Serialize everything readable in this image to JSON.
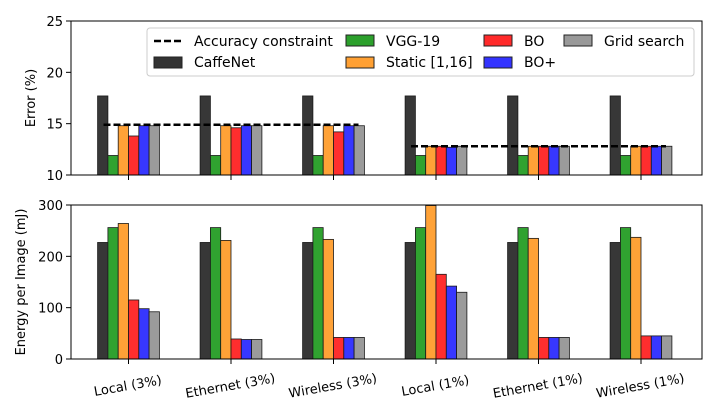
{
  "chart_data": [
    {
      "type": "bar",
      "panel": "top",
      "ylabel": "Error (%)",
      "ylim": [
        10,
        25
      ],
      "yticks": [
        10,
        15,
        20,
        25
      ],
      "categories": [
        "Local (3%)",
        "Ethernet (3%)",
        "Wireless (3%)",
        "Local (1%)",
        "Ethernet (1%)",
        "Wireless (1%)"
      ],
      "series": [
        {
          "name": "CaffeNet",
          "color": "#333333",
          "values": [
            17.7,
            17.7,
            17.7,
            17.7,
            17.7,
            17.7
          ]
        },
        {
          "name": "VGG-19",
          "color": "#2ca02c",
          "values": [
            11.9,
            11.9,
            11.9,
            11.9,
            11.9,
            11.9
          ]
        },
        {
          "name": "Static [1,16]",
          "color": "#ffa033",
          "values": [
            14.8,
            14.8,
            14.8,
            12.8,
            12.8,
            12.8
          ]
        },
        {
          "name": "BO",
          "color": "#ff2a2a",
          "values": [
            13.8,
            14.6,
            14.2,
            12.8,
            12.8,
            12.8
          ]
        },
        {
          "name": "BO+",
          "color": "#3333ff",
          "values": [
            14.8,
            14.8,
            14.8,
            12.7,
            12.8,
            12.8
          ]
        },
        {
          "name": "Grid search",
          "color": "#999999",
          "values": [
            14.8,
            14.8,
            14.8,
            12.8,
            12.8,
            12.8
          ]
        }
      ],
      "constraints": [
        {
          "name": "Accuracy constraint",
          "value": 14.9,
          "from_category": 0,
          "to_category": 2
        },
        {
          "name": "Accuracy constraint",
          "value": 12.8,
          "from_category": 3,
          "to_category": 5
        }
      ],
      "legend_position": "top-right"
    },
    {
      "type": "bar",
      "panel": "bottom",
      "ylabel": "Energy per Image (mJ)",
      "ylim": [
        0,
        300
      ],
      "yticks": [
        0,
        100,
        200,
        300
      ],
      "categories": [
        "Local (3%)",
        "Ethernet (3%)",
        "Wireless (3%)",
        "Local (1%)",
        "Ethernet (1%)",
        "Wireless (1%)"
      ],
      "series": [
        {
          "name": "CaffeNet",
          "color": "#333333",
          "values": [
            227,
            227,
            227,
            227,
            227,
            227
          ]
        },
        {
          "name": "VGG-19",
          "color": "#2ca02c",
          "values": [
            256,
            256,
            256,
            256,
            256,
            256
          ]
        },
        {
          "name": "Static [1,16]",
          "color": "#ffa033",
          "values": [
            264,
            231,
            233,
            299,
            235,
            237
          ]
        },
        {
          "name": "BO",
          "color": "#ff2a2a",
          "values": [
            115,
            39,
            42,
            165,
            42,
            45
          ]
        },
        {
          "name": "BO+",
          "color": "#3333ff",
          "values": [
            98,
            38,
            42,
            142,
            42,
            45
          ]
        },
        {
          "name": "Grid search",
          "color": "#999999",
          "values": [
            92,
            38,
            42,
            130,
            42,
            45
          ]
        }
      ]
    }
  ],
  "legend": {
    "constraint_label": "Accuracy constraint",
    "series_labels": [
      "CaffeNet",
      "VGG-19",
      "Static [1,16]",
      "BO",
      "BO+",
      "Grid search"
    ]
  }
}
